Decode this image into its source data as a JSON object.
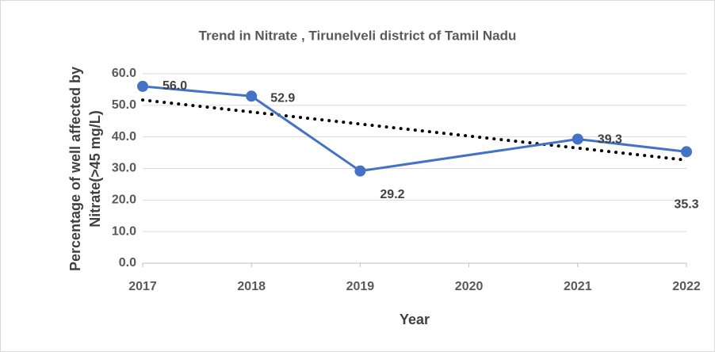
{
  "chart_data": {
    "type": "line",
    "title": "Trend in Nitrate , Tirunelveli district of Tamil Nadu",
    "xlabel": "Year",
    "ylabel": [
      "Percentage of well affected by",
      "Nitrate(>45 mg/L)"
    ],
    "x": [
      2017,
      2018,
      2019,
      2021,
      2022
    ],
    "series": [
      {
        "name": "Nitrate",
        "color": "#4472c4",
        "values": [
          56.0,
          52.9,
          29.2,
          39.3,
          35.3
        ],
        "value_labels": [
          "56.0",
          "52.9",
          "29.2",
          "39.3",
          "35.3"
        ]
      }
    ],
    "trendline": "linear",
    "xlim": [
      2017,
      2022
    ],
    "xticks": [
      2017,
      2018,
      2019,
      2020,
      2021,
      2022
    ],
    "ylim": [
      0,
      60
    ],
    "yticks": [
      {
        "value": 0,
        "label": "0.0"
      },
      {
        "value": 10,
        "label": "10.0"
      },
      {
        "value": 20,
        "label": "20.0"
      },
      {
        "value": 30,
        "label": "30.0"
      },
      {
        "value": 40,
        "label": "40.0"
      },
      {
        "value": 50,
        "label": "50.0"
      },
      {
        "value": 60,
        "label": "60.0"
      }
    ],
    "grid": true
  }
}
